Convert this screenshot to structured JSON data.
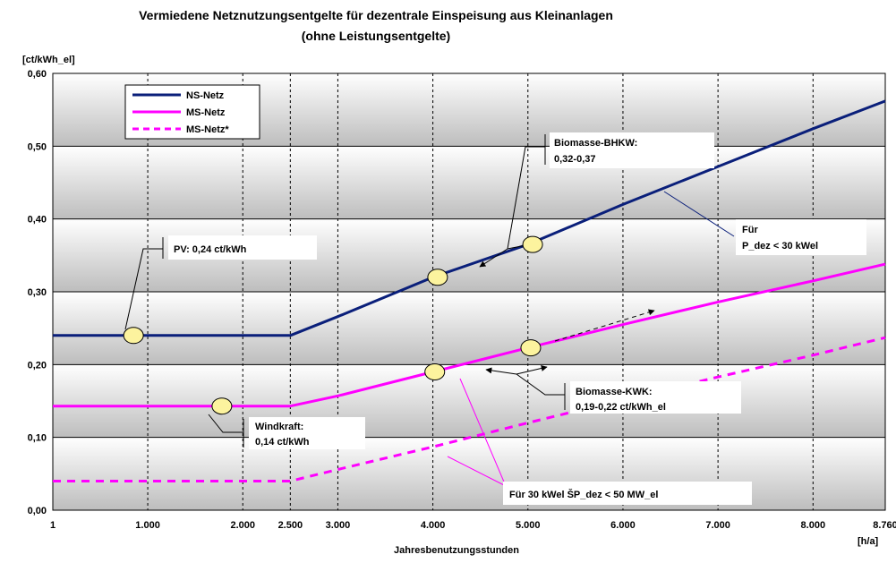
{
  "chart_data": {
    "type": "line",
    "title": "Vermiedene Netznutzungsentgelte für dezentrale Einspeisung aus Kleinanlagen",
    "subtitle": "(ohne Leistungsentgelte)",
    "ylabel": "[ct/kWh_el]",
    "xlabel": "Jahresbenutzungsstunden",
    "xunit": "[h/a]",
    "xlim": [
      1,
      8760
    ],
    "ylim": [
      0,
      0.6
    ],
    "x_ticks": [
      1,
      1000,
      2000,
      2500,
      3000,
      4000,
      5000,
      6000,
      7000,
      8000,
      8760
    ],
    "x_tick_labels": [
      "1",
      "1.000",
      "2.000",
      "2.500",
      "3.000",
      "4.000",
      "5.000",
      "6.000",
      "7.000",
      "8.000",
      "8.760"
    ],
    "y_ticks": [
      0,
      0.1,
      0.2,
      0.3,
      0.4,
      0.5,
      0.6
    ],
    "y_tick_labels": [
      "0,00",
      "0,10",
      "0,20",
      "0,30",
      "0,40",
      "0,50",
      "0,60"
    ],
    "grid": true,
    "legend_position": "top-left",
    "series": [
      {
        "name": "NS-Netz",
        "color": "#0a1f7a",
        "dash": "solid",
        "points": [
          [
            1,
            0.24
          ],
          [
            2500,
            0.24
          ],
          [
            3000,
            0.266
          ],
          [
            4000,
            0.32
          ],
          [
            5000,
            0.365
          ],
          [
            6000,
            0.42
          ],
          [
            7000,
            0.472
          ],
          [
            8000,
            0.524
          ],
          [
            8760,
            0.562
          ]
        ]
      },
      {
        "name": "MS-Netz",
        "color": "#ff00ff",
        "dash": "solid",
        "points": [
          [
            1,
            0.143
          ],
          [
            2500,
            0.143
          ],
          [
            3000,
            0.157
          ],
          [
            4000,
            0.19
          ],
          [
            5000,
            0.223
          ],
          [
            6000,
            0.255
          ],
          [
            7000,
            0.286
          ],
          [
            8000,
            0.315
          ],
          [
            8760,
            0.338
          ]
        ]
      },
      {
        "name": "MS-Netz*",
        "color": "#ff00ff",
        "dash": "dashed",
        "points": [
          [
            1,
            0.04
          ],
          [
            2500,
            0.04
          ],
          [
            3000,
            0.056
          ],
          [
            4000,
            0.087
          ],
          [
            5000,
            0.12
          ],
          [
            6000,
            0.152
          ],
          [
            7000,
            0.183
          ],
          [
            8000,
            0.213
          ],
          [
            8760,
            0.237
          ]
        ]
      }
    ],
    "markers": [
      [
        850,
        0.24
      ],
      [
        1780,
        0.143
      ],
      [
        4050,
        0.32
      ],
      [
        5050,
        0.365
      ],
      [
        4020,
        0.19
      ],
      [
        5030,
        0.223
      ]
    ],
    "annotations": {
      "pv": "PV: 0,24 ct/kWh",
      "bio_bhkw_1": "Biomasse-BHKW:",
      "bio_bhkw_2": "0,32-0,37",
      "fuer_1": "Für",
      "fuer_2": "P_dez < 30 kWel",
      "bio_kwk_1": "Biomasse-KWK:",
      "bio_kwk_2": "0,19-0,22 ct/kWh_el",
      "wind_1": "Windkraft:",
      "wind_2": "0,14 ct/kWh",
      "range": "Für 30 kWel ŠP_dez < 50 MW_el"
    }
  }
}
